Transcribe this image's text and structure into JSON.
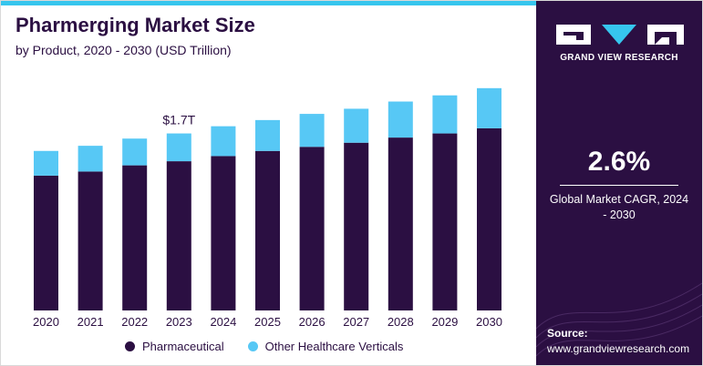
{
  "header": {
    "title": "Pharmerging Market Size",
    "subtitle": "by Product, 2020 - 2030 (USD Trillion)"
  },
  "chart_data": {
    "type": "bar",
    "stacked": true,
    "categories": [
      "2020",
      "2021",
      "2022",
      "2023",
      "2024",
      "2025",
      "2026",
      "2027",
      "2028",
      "2029",
      "2030"
    ],
    "series": [
      {
        "name": "Pharmaceutical",
        "color": "#2b0f42",
        "values": [
          1.31,
          1.35,
          1.41,
          1.45,
          1.5,
          1.55,
          1.59,
          1.63,
          1.68,
          1.72,
          1.77
        ]
      },
      {
        "name": "Other Healthcare Verticals",
        "color": "#57c8f5",
        "values": [
          0.24,
          0.25,
          0.26,
          0.27,
          0.29,
          0.3,
          0.32,
          0.33,
          0.35,
          0.37,
          0.39
        ]
      }
    ],
    "annotations": [
      {
        "category": "2023",
        "text": "$1.7T"
      }
    ],
    "ylim": [
      0,
      2.3
    ],
    "grid": false,
    "legend_position": "bottom"
  },
  "sidebar": {
    "brand": "GRAND VIEW RESEARCH",
    "cagr_value": "2.6%",
    "cagr_label": "Global Market CAGR, 2024 - 2030",
    "source_label": "Source:",
    "source_url": "www.grandviewresearch.com",
    "colors": {
      "background": "#2b0f42",
      "accent": "#36c6ee"
    }
  }
}
